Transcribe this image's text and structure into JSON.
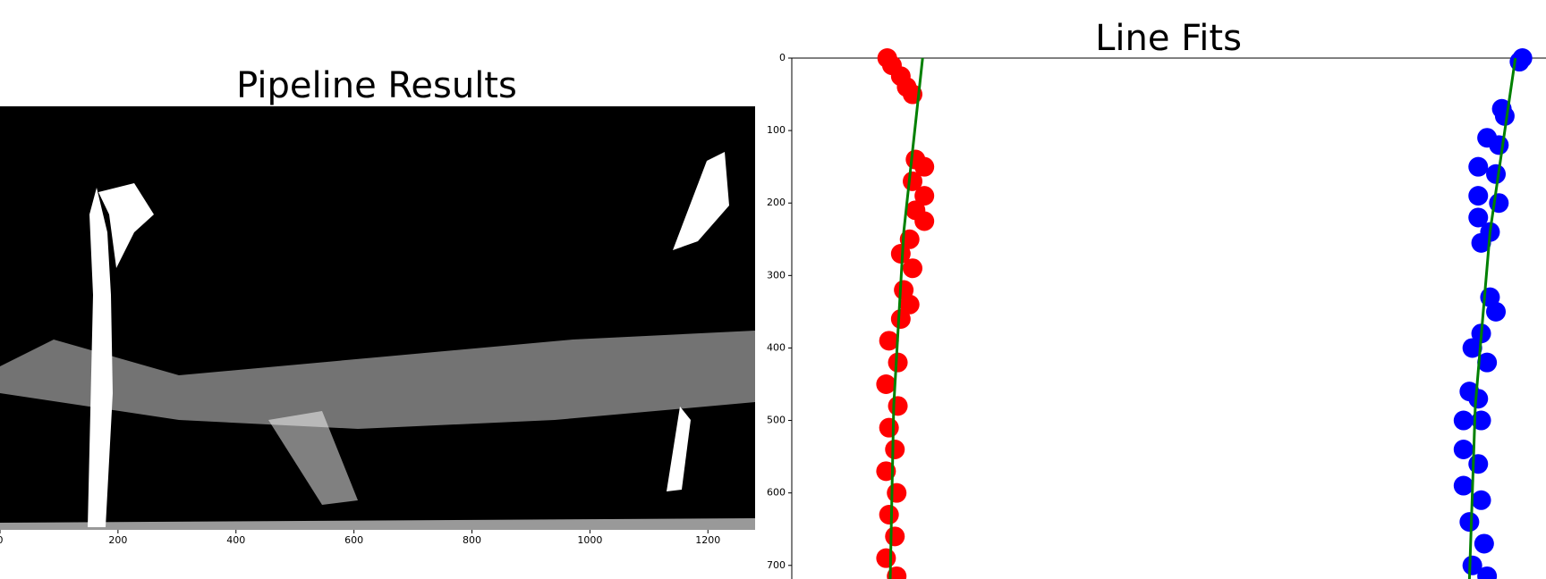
{
  "chart_data": [
    {
      "type": "image",
      "title": "Pipeline Results",
      "xlim": [
        0,
        1280
      ],
      "xticks": [
        0,
        200,
        400,
        600,
        800,
        1000,
        1200
      ]
    },
    {
      "type": "scatter",
      "title": "Line Fits",
      "xlim": [
        0,
        1280
      ],
      "ylim": [
        0,
        720
      ],
      "y_inverted": true,
      "yticks": [
        0,
        100,
        200,
        300,
        400,
        500,
        600,
        700
      ],
      "series": [
        {
          "color": "#ff0000",
          "x": [
            162,
            170,
            185,
            195,
            205,
            210,
            225,
            205,
            225,
            210,
            225,
            200,
            185,
            205,
            190,
            200,
            185,
            165,
            180,
            160,
            180,
            165,
            175,
            160,
            178,
            165,
            175,
            160,
            178
          ],
          "values": [
            0,
            10,
            25,
            40,
            50,
            140,
            150,
            170,
            190,
            210,
            225,
            250,
            270,
            290,
            320,
            340,
            360,
            390,
            420,
            450,
            480,
            510,
            540,
            570,
            600,
            630,
            660,
            690,
            715
          ]
        },
        {
          "color": "#0000ff",
          "x": [
            1240,
            1235,
            1205,
            1210,
            1180,
            1200,
            1165,
            1195,
            1165,
            1200,
            1165,
            1185,
            1170,
            1185,
            1195,
            1170,
            1155,
            1180,
            1150,
            1165,
            1140,
            1170,
            1140,
            1165,
            1140,
            1170,
            1150,
            1175,
            1155,
            1180
          ],
          "values": [
            0,
            5,
            70,
            80,
            110,
            120,
            150,
            160,
            190,
            200,
            220,
            240,
            255,
            330,
            350,
            380,
            400,
            420,
            460,
            470,
            500,
            500,
            540,
            560,
            590,
            610,
            640,
            670,
            700,
            715
          ]
        }
      ],
      "fits": [
        {
          "color": "#008000",
          "x": [
            222,
            190,
            173,
            167
          ],
          "values": [
            0,
            240,
            480,
            720
          ]
        },
        {
          "color": "#008000",
          "x": [
            1228,
            1185,
            1160,
            1150
          ],
          "values": [
            0,
            240,
            480,
            720
          ]
        }
      ]
    }
  ]
}
